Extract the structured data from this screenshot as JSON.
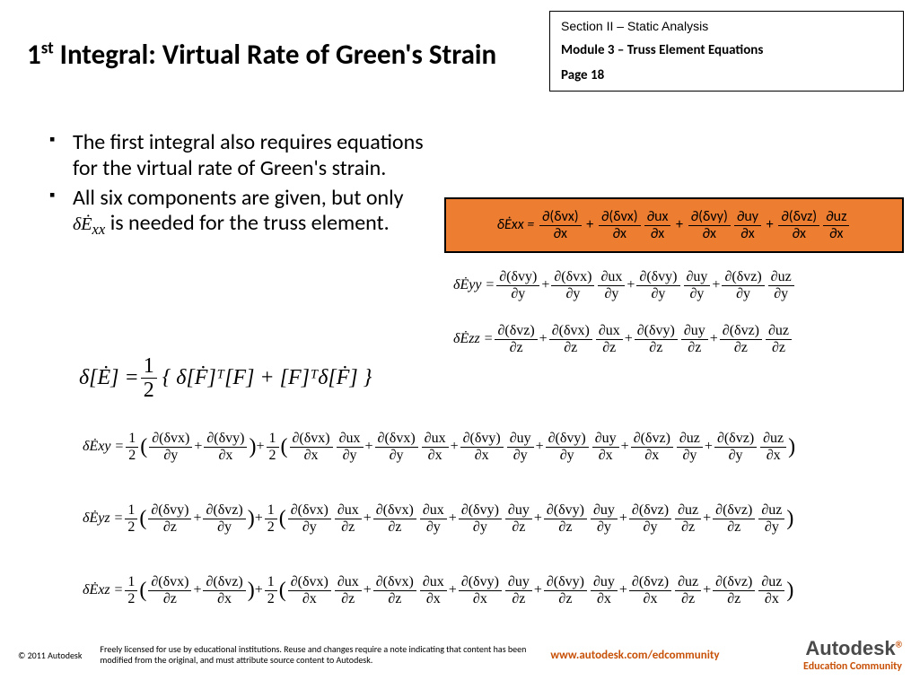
{
  "header": {
    "section": "Section II – Static Analysis",
    "module": "Module 3 – Truss Element Equations",
    "page": "Page 18"
  },
  "title": {
    "pre": "1",
    "sup": "st",
    "post": " Integral: Virtual Rate of Green's Strain"
  },
  "bullets": [
    "The first integral also requires equations for the virtual rate of Green's strain.",
    "All six components are given, but only δĖxx is needed for the truss element."
  ],
  "equations": {
    "main_lhs": "δ[Ė] = ",
    "main_frac_num": "1",
    "main_frac_den": "2",
    "main_mid": "{ δ[Ḟ]ᵀ[F] + [F]ᵀδ[Ḟ] }",
    "highlight": {
      "lhs": "δĖxx = ",
      "terms": [
        {
          "num": "∂(δvx)",
          "den": "∂x"
        },
        {
          "num": "∂(δvx)",
          "den": "∂x",
          "num2": "∂ux",
          "den2": "∂x"
        },
        {
          "num": "∂(δvy)",
          "den": "∂x",
          "num2": "∂uy",
          "den2": "∂x"
        },
        {
          "num": "∂(δvz)",
          "den": "∂x",
          "num2": "∂uz",
          "den2": "∂x"
        }
      ],
      "color": "#ed7d31",
      "border": "#000000"
    },
    "eyy": {
      "lhs": "δĖyy = ",
      "terms": [
        {
          "num": "∂(δvy)",
          "den": "∂y"
        },
        {
          "num": "∂(δvx)",
          "den": "∂y",
          "num2": "∂ux",
          "den2": "∂y"
        },
        {
          "num": "∂(δvy)",
          "den": "∂y",
          "num2": "∂uy",
          "den2": "∂y"
        },
        {
          "num": "∂(δvz)",
          "den": "∂y",
          "num2": "∂uz",
          "den2": "∂y"
        }
      ]
    },
    "ezz": {
      "lhs": "δĖzz = ",
      "terms": [
        {
          "num": "∂(δvz)",
          "den": "∂z"
        },
        {
          "num": "∂(δvx)",
          "den": "∂z",
          "num2": "∂ux",
          "den2": "∂z"
        },
        {
          "num": "∂(δvy)",
          "den": "∂z",
          "num2": "∂uy",
          "den2": "∂z"
        },
        {
          "num": "∂(δvz)",
          "den": "∂z",
          "num2": "∂uz",
          "den2": "∂z"
        }
      ]
    },
    "shear": {
      "half_num": "1",
      "half_den": "2",
      "exy": {
        "lhs": "δĖxy = ",
        "g1": [
          {
            "num": "∂(δvx)",
            "den": "∂y"
          },
          {
            "num": "∂(δvy)",
            "den": "∂x"
          }
        ],
        "g2": [
          {
            "num": "∂(δvx)",
            "den": "∂x",
            "num2": "∂ux",
            "den2": "∂y"
          },
          {
            "num": "∂(δvx)",
            "den": "∂y",
            "num2": "∂ux",
            "den2": "∂x"
          },
          {
            "num": "∂(δvy)",
            "den": "∂x",
            "num2": "∂uy",
            "den2": "∂y"
          },
          {
            "num": "∂(δvy)",
            "den": "∂y",
            "num2": "∂uy",
            "den2": "∂x"
          },
          {
            "num": "∂(δvz)",
            "den": "∂x",
            "num2": "∂uz",
            "den2": "∂y"
          },
          {
            "num": "∂(δvz)",
            "den": "∂y",
            "num2": "∂uz",
            "den2": "∂x"
          }
        ]
      },
      "eyz": {
        "lhs": "δĖyz = ",
        "g1": [
          {
            "num": "∂(δvy)",
            "den": "∂z"
          },
          {
            "num": "∂(δvz)",
            "den": "∂y"
          }
        ],
        "g2": [
          {
            "num": "∂(δvx)",
            "den": "∂y",
            "num2": "∂ux",
            "den2": "∂z"
          },
          {
            "num": "∂(δvx)",
            "den": "∂z",
            "num2": "∂ux",
            "den2": "∂y"
          },
          {
            "num": "∂(δvy)",
            "den": "∂y",
            "num2": "∂uy",
            "den2": "∂z"
          },
          {
            "num": "∂(δvy)",
            "den": "∂z",
            "num2": "∂uy",
            "den2": "∂y"
          },
          {
            "num": "∂(δvz)",
            "den": "∂y",
            "num2": "∂uz",
            "den2": "∂z"
          },
          {
            "num": "∂(δvz)",
            "den": "∂z",
            "num2": "∂uz",
            "den2": "∂y"
          }
        ]
      },
      "exz": {
        "lhs": "δĖxz = ",
        "g1": [
          {
            "num": "∂(δvx)",
            "den": "∂z"
          },
          {
            "num": "∂(δvz)",
            "den": "∂x"
          }
        ],
        "g2": [
          {
            "num": "∂(δvx)",
            "den": "∂x",
            "num2": "∂ux",
            "den2": "∂z"
          },
          {
            "num": "∂(δvx)",
            "den": "∂z",
            "num2": "∂ux",
            "den2": "∂x"
          },
          {
            "num": "∂(δvy)",
            "den": "∂x",
            "num2": "∂uy",
            "den2": "∂z"
          },
          {
            "num": "∂(δvy)",
            "den": "∂z",
            "num2": "∂uy",
            "den2": "∂x"
          },
          {
            "num": "∂(δvz)",
            "den": "∂x",
            "num2": "∂uz",
            "den2": "∂z"
          },
          {
            "num": "∂(δvz)",
            "den": "∂z",
            "num2": "∂uz",
            "den2": "∂x"
          }
        ]
      }
    }
  },
  "footer": {
    "copyright": "© 2011 Autodesk",
    "license": "Freely licensed for use by educational institutions. Reuse and changes require a note indicating that content has been modified from the original, and must attribute source content to Autodesk.",
    "url": "www.autodesk.com/edcommunity",
    "brand": "Autodesk",
    "brand_sub": "Education Community"
  },
  "colors": {
    "accent": "#c85108",
    "highlight_bg": "#ed7d31",
    "text": "#000000"
  }
}
